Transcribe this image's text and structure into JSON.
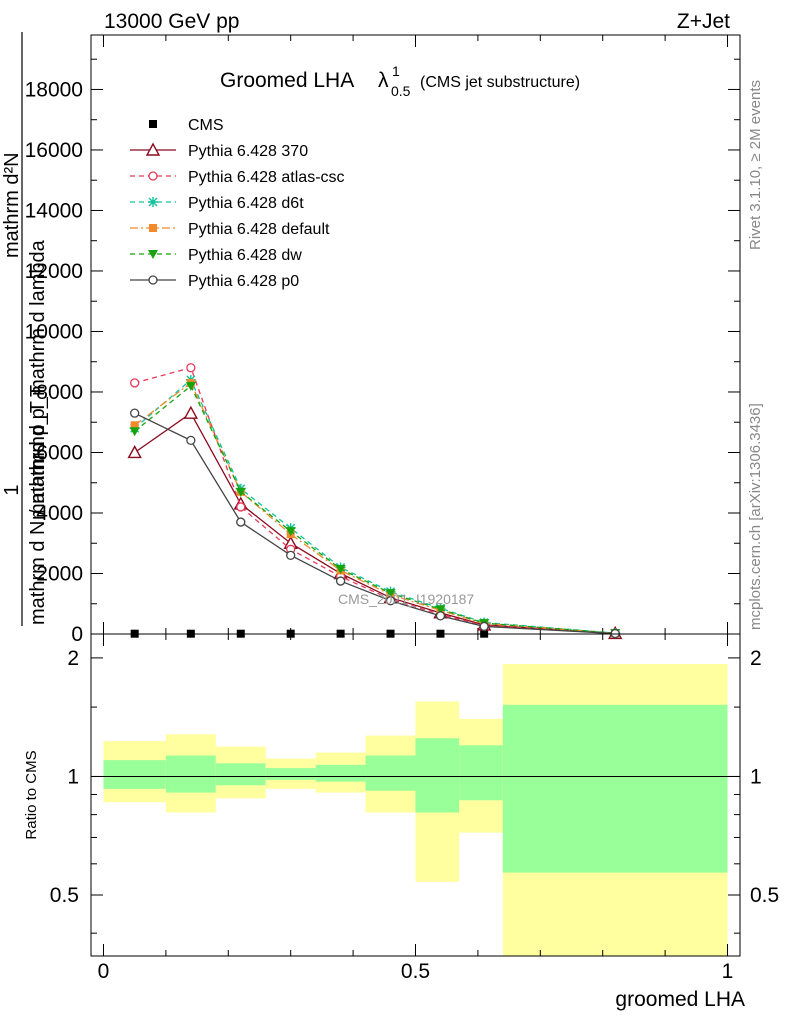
{
  "header": {
    "energy_label": "13000 GeV pp",
    "process_label": "Z+Jet",
    "plot_title": "Groomed LHA",
    "plot_title_lambda": "λ",
    "plot_title_sup": "1",
    "plot_title_sub": "0.5",
    "plot_title_suffix": "(CMS jet substructure)"
  },
  "side_labels": {
    "rivet": "Rivet 3.1.10, ≥ 2M events",
    "mcplots": "mcplots.cern.ch [arXiv:1306.3436]"
  },
  "watermark": "CMS_2021_I1920187",
  "ylabel_lines": {
    "one": "1",
    "denominator": "mathrm d N / mathrmd p_T",
    "numerator": "mathrm d²N",
    "numerator_rest": "mathrmd p_T mathrm d lambda"
  },
  "ratio_ylabel": "Ratio to CMS",
  "xlabel": "groomed LHA",
  "chart_data": [
    {
      "type": "line",
      "title": "Groomed LHA λ^1_0.5 (CMS jet substructure)",
      "xlabel": "groomed LHA",
      "ylabel": "1 / (mathrm d N / mathrmd p_T) · mathrm d²N / (mathrmd p_T mathrm d lambda)",
      "xlim": [
        -0.02,
        1.02
      ],
      "ylim": [
        0,
        19800
      ],
      "y_ticks": [
        0,
        2000,
        4000,
        6000,
        8000,
        10000,
        12000,
        14000,
        16000,
        18000
      ],
      "y_tick_labels": [
        "0",
        "2000",
        "4000",
        "6000",
        "8000",
        "10000",
        "12000",
        "14000",
        "16000",
        "18000"
      ],
      "legend_position": "top-left",
      "x": [
        0.05,
        0.14,
        0.22,
        0.3,
        0.38,
        0.46,
        0.54,
        0.61,
        0.82
      ],
      "series": [
        {
          "name": "CMS",
          "color": "#000000",
          "dash": "",
          "marker": "filled-square",
          "values": [
            10,
            10,
            10,
            10,
            10,
            10,
            10,
            10,
            10
          ]
        },
        {
          "name": "Pythia 6.428 370",
          "color": "#8b0a1d",
          "dash": "",
          "marker": "open-triangle",
          "values": [
            6000,
            7300,
            4300,
            3000,
            2000,
            1200,
            700,
            300,
            20
          ]
        },
        {
          "name": "Pythia 6.428 atlas-csc",
          "color": "#e8385a",
          "dash": "5,4",
          "marker": "open-circle",
          "values": [
            8300,
            8800,
            4200,
            2800,
            1900,
            1150,
            650,
            280,
            20
          ]
        },
        {
          "name": "Pythia 6.428 d6t",
          "color": "#11c29c",
          "dash": "5,4",
          "marker": "asterisk",
          "values": [
            6800,
            8400,
            4800,
            3500,
            2200,
            1400,
            850,
            380,
            30
          ]
        },
        {
          "name": "Pythia 6.428 default",
          "color": "#f08a2c",
          "dash": "8,3,2,3",
          "marker": "filled-square",
          "values": [
            6900,
            8300,
            4700,
            3300,
            2100,
            1300,
            780,
            350,
            25
          ]
        },
        {
          "name": "Pythia 6.428 dw",
          "color": "#16a30c",
          "dash": "5,4",
          "marker": "filled-triangle-down",
          "values": [
            6700,
            8200,
            4700,
            3400,
            2150,
            1350,
            820,
            360,
            28
          ]
        },
        {
          "name": "Pythia 6.428 p0",
          "color": "#444444",
          "dash": "",
          "marker": "open-circle",
          "values": [
            7300,
            6400,
            3700,
            2600,
            1750,
            1100,
            600,
            250,
            15
          ]
        }
      ]
    },
    {
      "type": "area",
      "title": "",
      "xlabel": "groomed LHA",
      "ylabel": "Ratio to CMS",
      "xlim": [
        -0.02,
        1.02
      ],
      "ylim": [
        0.35,
        2.3
      ],
      "y_scale": "log",
      "x_ticks": [
        0,
        0.5,
        1
      ],
      "x_tick_labels": [
        "0",
        "0.5",
        "1"
      ],
      "y_ticks": [
        0.5,
        1,
        2
      ],
      "y_tick_labels": [
        "0.5",
        "1",
        "2"
      ],
      "reference_line": 1,
      "bins": [
        {
          "x_low": 0.0,
          "x_high": 0.1,
          "stat_low": 0.93,
          "stat_high": 1.1,
          "total_low": 0.86,
          "total_high": 1.23
        },
        {
          "x_low": 0.1,
          "x_high": 0.18,
          "stat_low": 0.91,
          "stat_high": 1.13,
          "total_low": 0.81,
          "total_high": 1.28
        },
        {
          "x_low": 0.18,
          "x_high": 0.26,
          "stat_low": 0.95,
          "stat_high": 1.08,
          "total_low": 0.88,
          "total_high": 1.19
        },
        {
          "x_low": 0.26,
          "x_high": 0.34,
          "stat_low": 0.98,
          "stat_high": 1.05,
          "total_low": 0.93,
          "total_high": 1.11
        },
        {
          "x_low": 0.34,
          "x_high": 0.42,
          "stat_low": 0.97,
          "stat_high": 1.07,
          "total_low": 0.91,
          "total_high": 1.15
        },
        {
          "x_low": 0.42,
          "x_high": 0.5,
          "stat_low": 0.92,
          "stat_high": 1.13,
          "total_low": 0.81,
          "total_high": 1.27
        },
        {
          "x_low": 0.5,
          "x_high": 0.57,
          "stat_low": 0.81,
          "stat_high": 1.25,
          "total_low": 0.54,
          "total_high": 1.55
        },
        {
          "x_low": 0.57,
          "x_high": 0.64,
          "stat_low": 0.87,
          "stat_high": 1.2,
          "total_low": 0.72,
          "total_high": 1.4
        },
        {
          "x_low": 0.64,
          "x_high": 1.0,
          "stat_low": 0.57,
          "stat_high": 1.52,
          "total_low": 0.35,
          "total_high": 1.93
        }
      ],
      "colors": {
        "stat": "#99ff99",
        "total": "#ffff9f"
      }
    }
  ]
}
